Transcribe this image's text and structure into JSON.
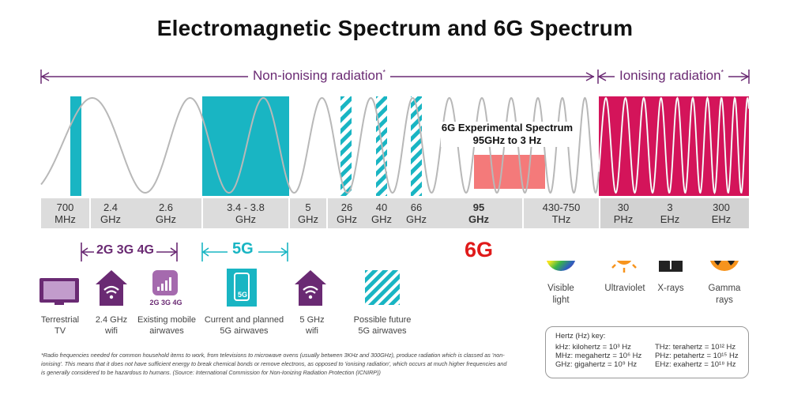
{
  "title": "Electromagnetic Spectrum and 6G Spectrum",
  "bands": {
    "non_ionising": "Non-ionising radiation",
    "ionising": "Ionising radiation",
    "asterisk": "*"
  },
  "experimental": {
    "line1": "6G Experimental Spectrum",
    "line2": "95GHz to 3 Hz"
  },
  "ticks": [
    {
      "line1": "700",
      "line2": "MHz"
    },
    {
      "line1": "2.4",
      "line2": "GHz"
    },
    {
      "line1": "2.6",
      "line2": "GHz"
    },
    {
      "line1": "3.4 - 3.8",
      "line2": "GHz"
    },
    {
      "line1": "5",
      "line2": "GHz"
    },
    {
      "line1": "26",
      "line2": "GHz"
    },
    {
      "line1": "40",
      "line2": "GHz"
    },
    {
      "line1": "66",
      "line2": "GHz"
    },
    {
      "line1": "95",
      "line2": "GHz"
    },
    {
      "line1": "430-750",
      "line2": "THz"
    },
    {
      "line1": "30",
      "line2": "PHz"
    },
    {
      "line1": "3",
      "line2": "EHz"
    },
    {
      "line1": "300",
      "line2": "EHz"
    }
  ],
  "generations": {
    "legacy": "2G 3G 4G",
    "g5": "5G",
    "g6": "6G"
  },
  "icons": {
    "tv": {
      "line1": "Terrestrial",
      "line2": "TV"
    },
    "wifi24": {
      "line1": "2.4 GHz",
      "line2": "wifi"
    },
    "mobile": {
      "badge": "2G 3G 4G",
      "line1": "Existing mobile",
      "line2": "airwaves"
    },
    "g5": {
      "badge": "5G",
      "line1": "Current and planned",
      "line2": "5G airwaves"
    },
    "wifi5": {
      "line1": "5 GHz",
      "line2": "wifi"
    },
    "future": {
      "line1": "Possible future",
      "line2": "5G airwaves"
    },
    "visible": {
      "line1": "Visible",
      "line2": "light"
    },
    "uv": {
      "line1": "Ultraviolet"
    },
    "xray": {
      "line1": "X-rays"
    },
    "gamma": {
      "line1": "Gamma",
      "line2": "rays"
    }
  },
  "footnote": "*Radio frequencies needed for common household items to work, from televisions to microwave ovens (usually between 3KHz and 300GHz), produce radiation which is classed as 'non-ionising'. This means that it does not have sufficient energy to break chemical bonds or remove electrons, as opposed to 'ionising radiation', which occurs at much higher frequencies and is generally considered to be hazardous to humans. (Source: International Commission for Non-Ionizing Radiation Protection (ICNIRP))",
  "hertz_key": {
    "title": "Hertz (Hz) key:",
    "left": [
      "kHz: kilohertz = 10³ Hz",
      "MHz: megahertz = 10⁶ Hz",
      "GHz: gigahertz = 10⁹ Hz"
    ],
    "right": [
      "THz: terahertz = 10¹² Hz",
      "PHz: petahertz = 10¹⁵ Hz",
      "EHz: exahertz = 10¹⁸ Hz"
    ]
  },
  "colors": {
    "purple": "#6a2a73",
    "teal": "#19b5c3",
    "magenta": "#d4145a",
    "red6g": "#e01a1a",
    "pink6g": "#f47a7a",
    "grey": "#dcdcdc"
  }
}
